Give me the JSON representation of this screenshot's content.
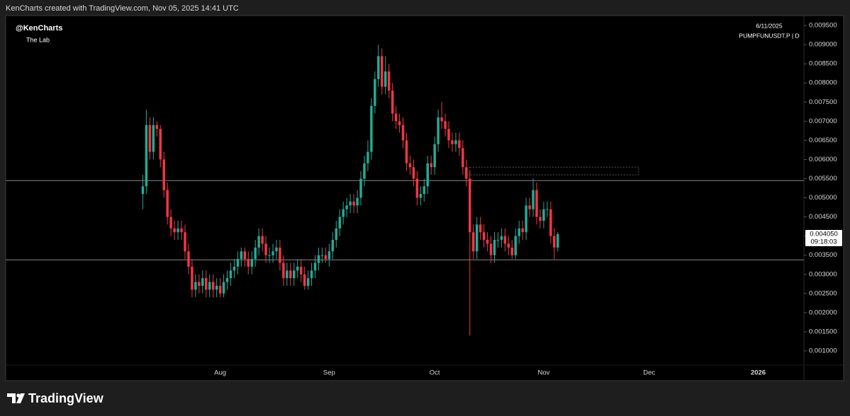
{
  "header": "KenCharts created with TradingView.com, Nov 05, 2025 14:41 UTC",
  "footer": "TradingView",
  "chart_data": {
    "type": "candlestick",
    "title": "@KenCharts",
    "subtitle": "The Lab",
    "date_label": "6/11/2025",
    "symbol": "PUMPFUNUSDT.P | D",
    "up_color": "#22ab94",
    "down_color": "#f23645",
    "open": [
      0.0051,
      0.0053,
      0.0069,
      0.0062,
      0.0069,
      0.0068,
      0.006,
      0.0052,
      0.0045,
      0.0042,
      0.0041,
      0.0042,
      0.0041,
      0.0036,
      0.0032,
      0.0026,
      0.0028,
      0.0027,
      0.0029,
      0.0026,
      0.0028,
      0.0026,
      0.0027,
      0.0025,
      0.0028,
      0.0029,
      0.0031,
      0.0032,
      0.0034,
      0.0036,
      0.0034,
      0.0032,
      0.0034,
      0.0037,
      0.004,
      0.0038,
      0.0035,
      0.0035,
      0.0036,
      0.0037,
      0.0033,
      0.0029,
      0.0031,
      0.0029,
      0.0031,
      0.0032,
      0.003,
      0.0027,
      0.0029,
      0.0031,
      0.0033,
      0.0035,
      0.0035,
      0.0034,
      0.0036,
      0.0039,
      0.0042,
      0.0045,
      0.0047,
      0.0048,
      0.0049,
      0.0048,
      0.005,
      0.0055,
      0.0059,
      0.0062,
      0.0074,
      0.0081,
      0.0087,
      0.0079,
      0.0083,
      0.0078,
      0.0072,
      0.007,
      0.0069,
      0.0065,
      0.0059,
      0.0058,
      0.0055,
      0.005,
      0.0051,
      0.0053,
      0.0059,
      0.0058,
      0.0064,
      0.0071,
      0.007,
      0.0068,
      0.0065,
      0.0064,
      0.0065,
      0.0063,
      0.0058,
      0.0055,
      0.0041,
      0.0036,
      0.0043,
      0.0041,
      0.0039,
      0.0038,
      0.0035,
      0.0039,
      0.0039,
      0.004,
      0.0038,
      0.0037,
      0.0035,
      0.004,
      0.0042,
      0.0041,
      0.0048,
      0.0047,
      0.0052,
      0.0045,
      0.0044,
      0.0047,
      0.0047,
      0.004,
      0.0037
    ],
    "high": [
      0.0056,
      0.0073,
      0.0071,
      0.0071,
      0.007,
      0.0069,
      0.0062,
      0.0054,
      0.0047,
      0.0044,
      0.0044,
      0.0044,
      0.0043,
      0.0038,
      0.0034,
      0.003,
      0.003,
      0.0031,
      0.0031,
      0.003,
      0.003,
      0.0029,
      0.0029,
      0.003,
      0.0031,
      0.0033,
      0.0034,
      0.0036,
      0.0037,
      0.0037,
      0.0036,
      0.0036,
      0.0039,
      0.0042,
      0.0042,
      0.004,
      0.0037,
      0.0038,
      0.0039,
      0.0039,
      0.0035,
      0.0033,
      0.0033,
      0.0033,
      0.0034,
      0.0034,
      0.0032,
      0.0031,
      0.0033,
      0.0035,
      0.0037,
      0.0037,
      0.0037,
      0.0038,
      0.0041,
      0.0044,
      0.0047,
      0.0049,
      0.005,
      0.0051,
      0.0051,
      0.0052,
      0.0057,
      0.0061,
      0.0065,
      0.0076,
      0.0083,
      0.009,
      0.0089,
      0.0087,
      0.0085,
      0.008,
      0.0074,
      0.0072,
      0.0071,
      0.0067,
      0.0061,
      0.006,
      0.0057,
      0.0053,
      0.0055,
      0.0061,
      0.0061,
      0.0066,
      0.0073,
      0.0075,
      0.0072,
      0.007,
      0.0067,
      0.0067,
      0.0067,
      0.0065,
      0.006,
      0.0057,
      0.0043,
      0.0045,
      0.0045,
      0.0043,
      0.0041,
      0.004,
      0.0041,
      0.0041,
      0.0042,
      0.0042,
      0.004,
      0.0039,
      0.0042,
      0.0044,
      0.0044,
      0.005,
      0.005,
      0.0055,
      0.0054,
      0.0047,
      0.0049,
      0.0049,
      0.0049,
      0.0042,
      0.0041
    ],
    "low": [
      0.0047,
      0.0051,
      0.006,
      0.006,
      0.0066,
      0.0058,
      0.005,
      0.0043,
      0.004,
      0.0039,
      0.0039,
      0.0039,
      0.0034,
      0.003,
      0.0024,
      0.0024,
      0.0025,
      0.0025,
      0.0024,
      0.0024,
      0.0024,
      0.0024,
      0.0024,
      0.0024,
      0.0026,
      0.0027,
      0.0029,
      0.003,
      0.0032,
      0.0032,
      0.003,
      0.003,
      0.0032,
      0.0035,
      0.0036,
      0.0033,
      0.0033,
      0.0033,
      0.0034,
      0.0031,
      0.0027,
      0.0027,
      0.0027,
      0.0027,
      0.0029,
      0.0028,
      0.0026,
      0.0026,
      0.0027,
      0.0029,
      0.0031,
      0.0033,
      0.0033,
      0.0032,
      0.0034,
      0.0037,
      0.004,
      0.0043,
      0.0045,
      0.0046,
      0.0046,
      0.0046,
      0.0048,
      0.0053,
      0.0057,
      0.006,
      0.0072,
      0.0079,
      0.0077,
      0.0077,
      0.0076,
      0.007,
      0.0068,
      0.0067,
      0.0063,
      0.0057,
      0.0056,
      0.0053,
      0.0048,
      0.0048,
      0.0049,
      0.0051,
      0.0056,
      0.0056,
      0.0062,
      0.0068,
      0.0066,
      0.0063,
      0.0062,
      0.0062,
      0.0061,
      0.0056,
      0.0053,
      0.0014,
      0.0034,
      0.0034,
      0.0039,
      0.0037,
      0.0036,
      0.0033,
      0.0033,
      0.0037,
      0.0037,
      0.0036,
      0.0035,
      0.0034,
      0.0034,
      0.0038,
      0.0039,
      0.0039,
      0.0045,
      0.0045,
      0.0043,
      0.0042,
      0.0042,
      0.0045,
      0.0038,
      0.0034,
      0.0036
    ],
    "close": [
      0.0053,
      0.0069,
      0.0062,
      0.0069,
      0.0068,
      0.006,
      0.0052,
      0.0045,
      0.0042,
      0.0041,
      0.0042,
      0.0041,
      0.0036,
      0.0032,
      0.0026,
      0.0028,
      0.0027,
      0.0029,
      0.0026,
      0.0028,
      0.0026,
      0.0027,
      0.0025,
      0.0028,
      0.0029,
      0.0031,
      0.0032,
      0.0034,
      0.0036,
      0.0034,
      0.0032,
      0.0034,
      0.0037,
      0.004,
      0.0038,
      0.0035,
      0.0035,
      0.0036,
      0.0037,
      0.0033,
      0.0029,
      0.0031,
      0.0029,
      0.0031,
      0.0032,
      0.003,
      0.0027,
      0.0029,
      0.0031,
      0.0033,
      0.0035,
      0.0035,
      0.0034,
      0.0036,
      0.0039,
      0.0042,
      0.0045,
      0.0047,
      0.0048,
      0.0049,
      0.0048,
      0.005,
      0.0055,
      0.0059,
      0.0062,
      0.0074,
      0.0081,
      0.0087,
      0.0079,
      0.0083,
      0.0078,
      0.0072,
      0.007,
      0.0069,
      0.0065,
      0.0059,
      0.0058,
      0.0055,
      0.005,
      0.0051,
      0.0053,
      0.0059,
      0.0058,
      0.0064,
      0.0071,
      0.007,
      0.0068,
      0.0065,
      0.0064,
      0.0065,
      0.0063,
      0.0058,
      0.0055,
      0.0041,
      0.0036,
      0.0043,
      0.0041,
      0.0039,
      0.0038,
      0.0035,
      0.0039,
      0.0039,
      0.004,
      0.0038,
      0.0037,
      0.0035,
      0.004,
      0.0042,
      0.0041,
      0.0048,
      0.0047,
      0.0052,
      0.0045,
      0.0044,
      0.0047,
      0.0047,
      0.004,
      0.0037,
      0.00405
    ],
    "last_price": {
      "value": 0.00405,
      "label": "0.004050"
    },
    "countdown": "09:18:03",
    "hlines": [
      0.00545,
      0.00338
    ],
    "zone": {
      "x": [
        93,
        141
      ],
      "y": [
        0.0056,
        0.0058
      ]
    },
    "xlim": [
      -39,
      188
    ],
    "xticks": [
      {
        "value": 22,
        "label": "Aug"
      },
      {
        "value": 53,
        "label": "Sep"
      },
      {
        "value": 83,
        "label": "Oct"
      },
      {
        "value": 114,
        "label": "Nov"
      },
      {
        "value": 144,
        "label": "Dec"
      },
      {
        "value": 175,
        "label": "2026"
      }
    ],
    "ylim": [
      0.00063,
      0.00976
    ],
    "yticks": [
      {
        "value": 0.001,
        "label": "0.001000"
      },
      {
        "value": 0.0015,
        "label": "0.001500"
      },
      {
        "value": 0.002,
        "label": "0.002000"
      },
      {
        "value": 0.0025,
        "label": "0.002500"
      },
      {
        "value": 0.003,
        "label": "0.003000"
      },
      {
        "value": 0.0035,
        "label": "0.003500"
      },
      {
        "value": 0.004,
        "label": "0.004000"
      },
      {
        "value": 0.0045,
        "label": "0.004500"
      },
      {
        "value": 0.005,
        "label": "0.005000"
      },
      {
        "value": 0.0055,
        "label": "0.005500"
      },
      {
        "value": 0.006,
        "label": "0.006000"
      },
      {
        "value": 0.0065,
        "label": "0.006500"
      },
      {
        "value": 0.007,
        "label": "0.007000"
      },
      {
        "value": 0.0075,
        "label": "0.007500"
      },
      {
        "value": 0.008,
        "label": "0.008000"
      },
      {
        "value": 0.0085,
        "label": "0.008500"
      },
      {
        "value": 0.009,
        "label": "0.009000"
      },
      {
        "value": 0.0095,
        "label": "0.009500"
      }
    ],
    "grid": false
  }
}
